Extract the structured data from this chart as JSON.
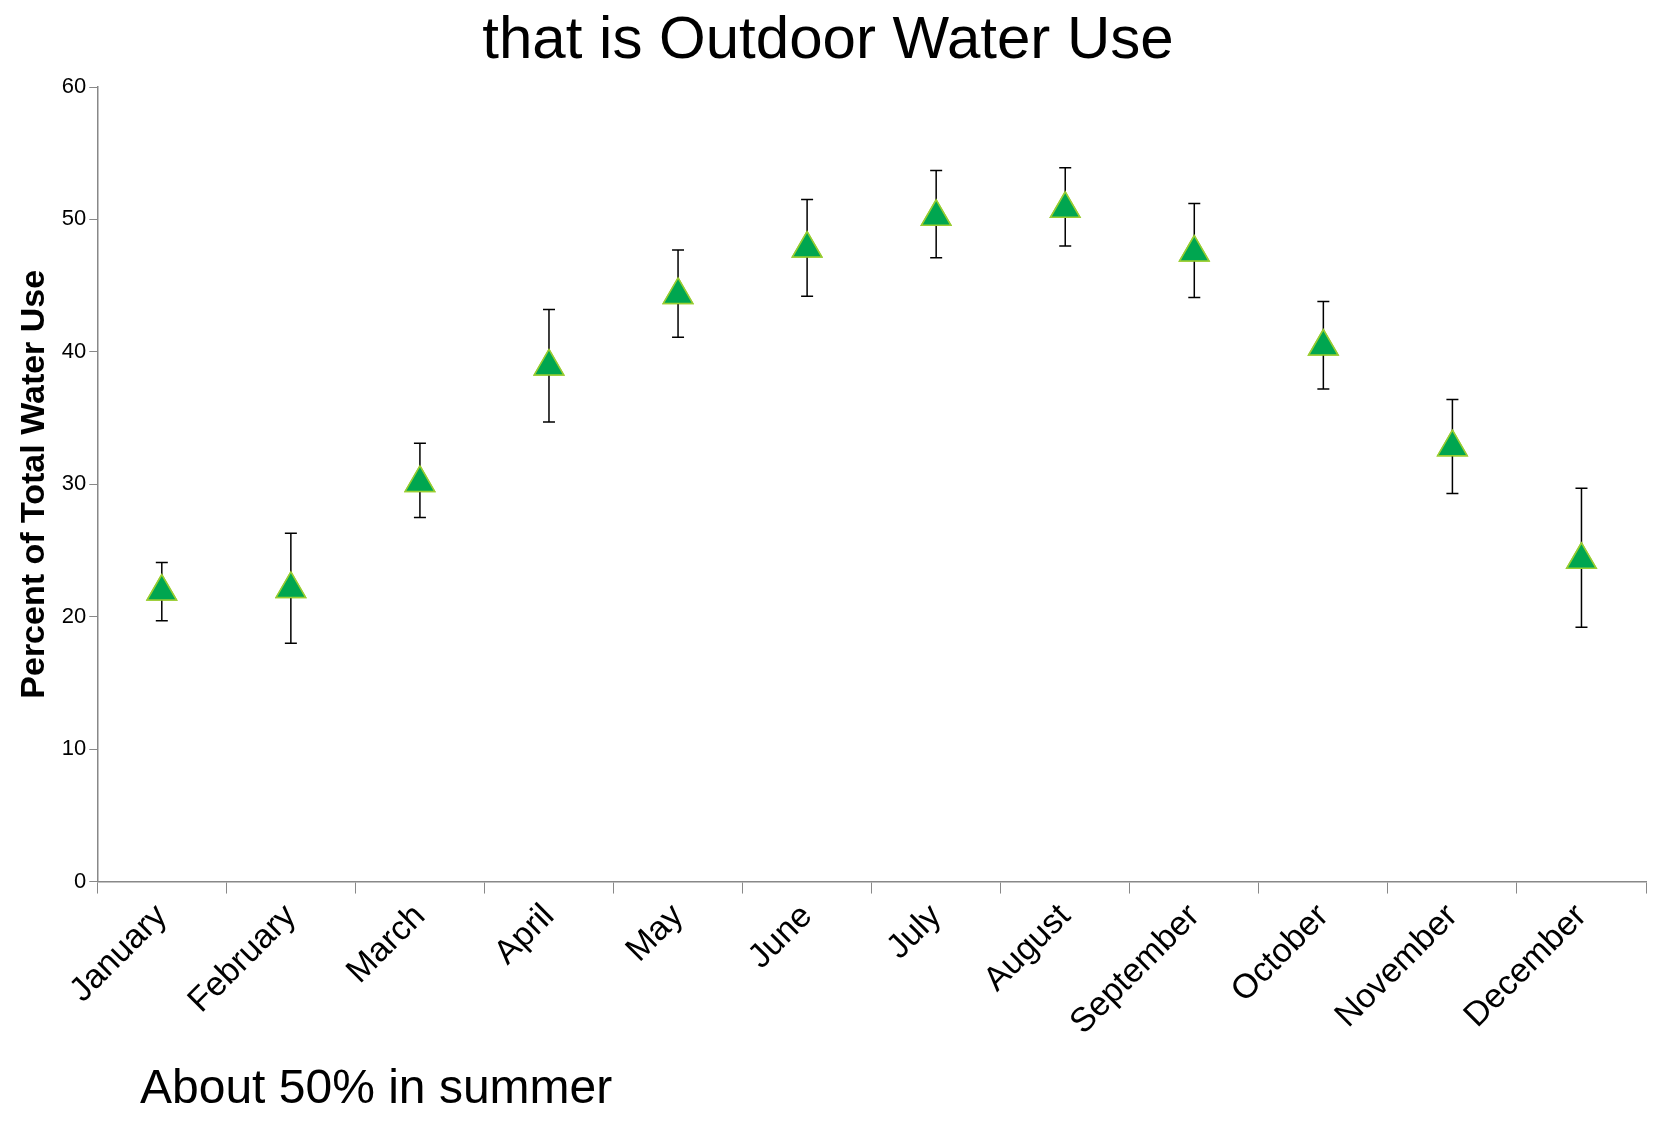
{
  "chart_data": {
    "type": "scatter",
    "title": "that is Outdoor Water Use",
    "ylabel": "Percent of Total Water Use",
    "categories": [
      "January",
      "February",
      "March",
      "April",
      "May",
      "June",
      "July",
      "August",
      "September",
      "October",
      "November",
      "December"
    ],
    "values": [
      21.9,
      22.1,
      30.1,
      38.9,
      44.3,
      47.8,
      50.2,
      50.8,
      47.5,
      40.4,
      32.8,
      24.3
    ],
    "errors": [
      [
        19.7,
        24.1
      ],
      [
        18.0,
        26.3
      ],
      [
        27.5,
        33.1
      ],
      [
        34.7,
        43.2
      ],
      [
        41.1,
        47.7
      ],
      [
        44.2,
        51.5
      ],
      [
        47.1,
        53.7
      ],
      [
        48.0,
        53.9
      ],
      [
        44.1,
        51.2
      ],
      [
        37.2,
        43.8
      ],
      [
        29.3,
        36.4
      ],
      [
        19.2,
        29.7
      ]
    ],
    "color": "#00a650",
    "marker": "triangle",
    "ylim": [
      0,
      60
    ],
    "yticks": [
      0,
      10,
      20,
      30,
      40,
      50,
      60
    ],
    "annotations": [
      "About 50% in summer"
    ]
  }
}
